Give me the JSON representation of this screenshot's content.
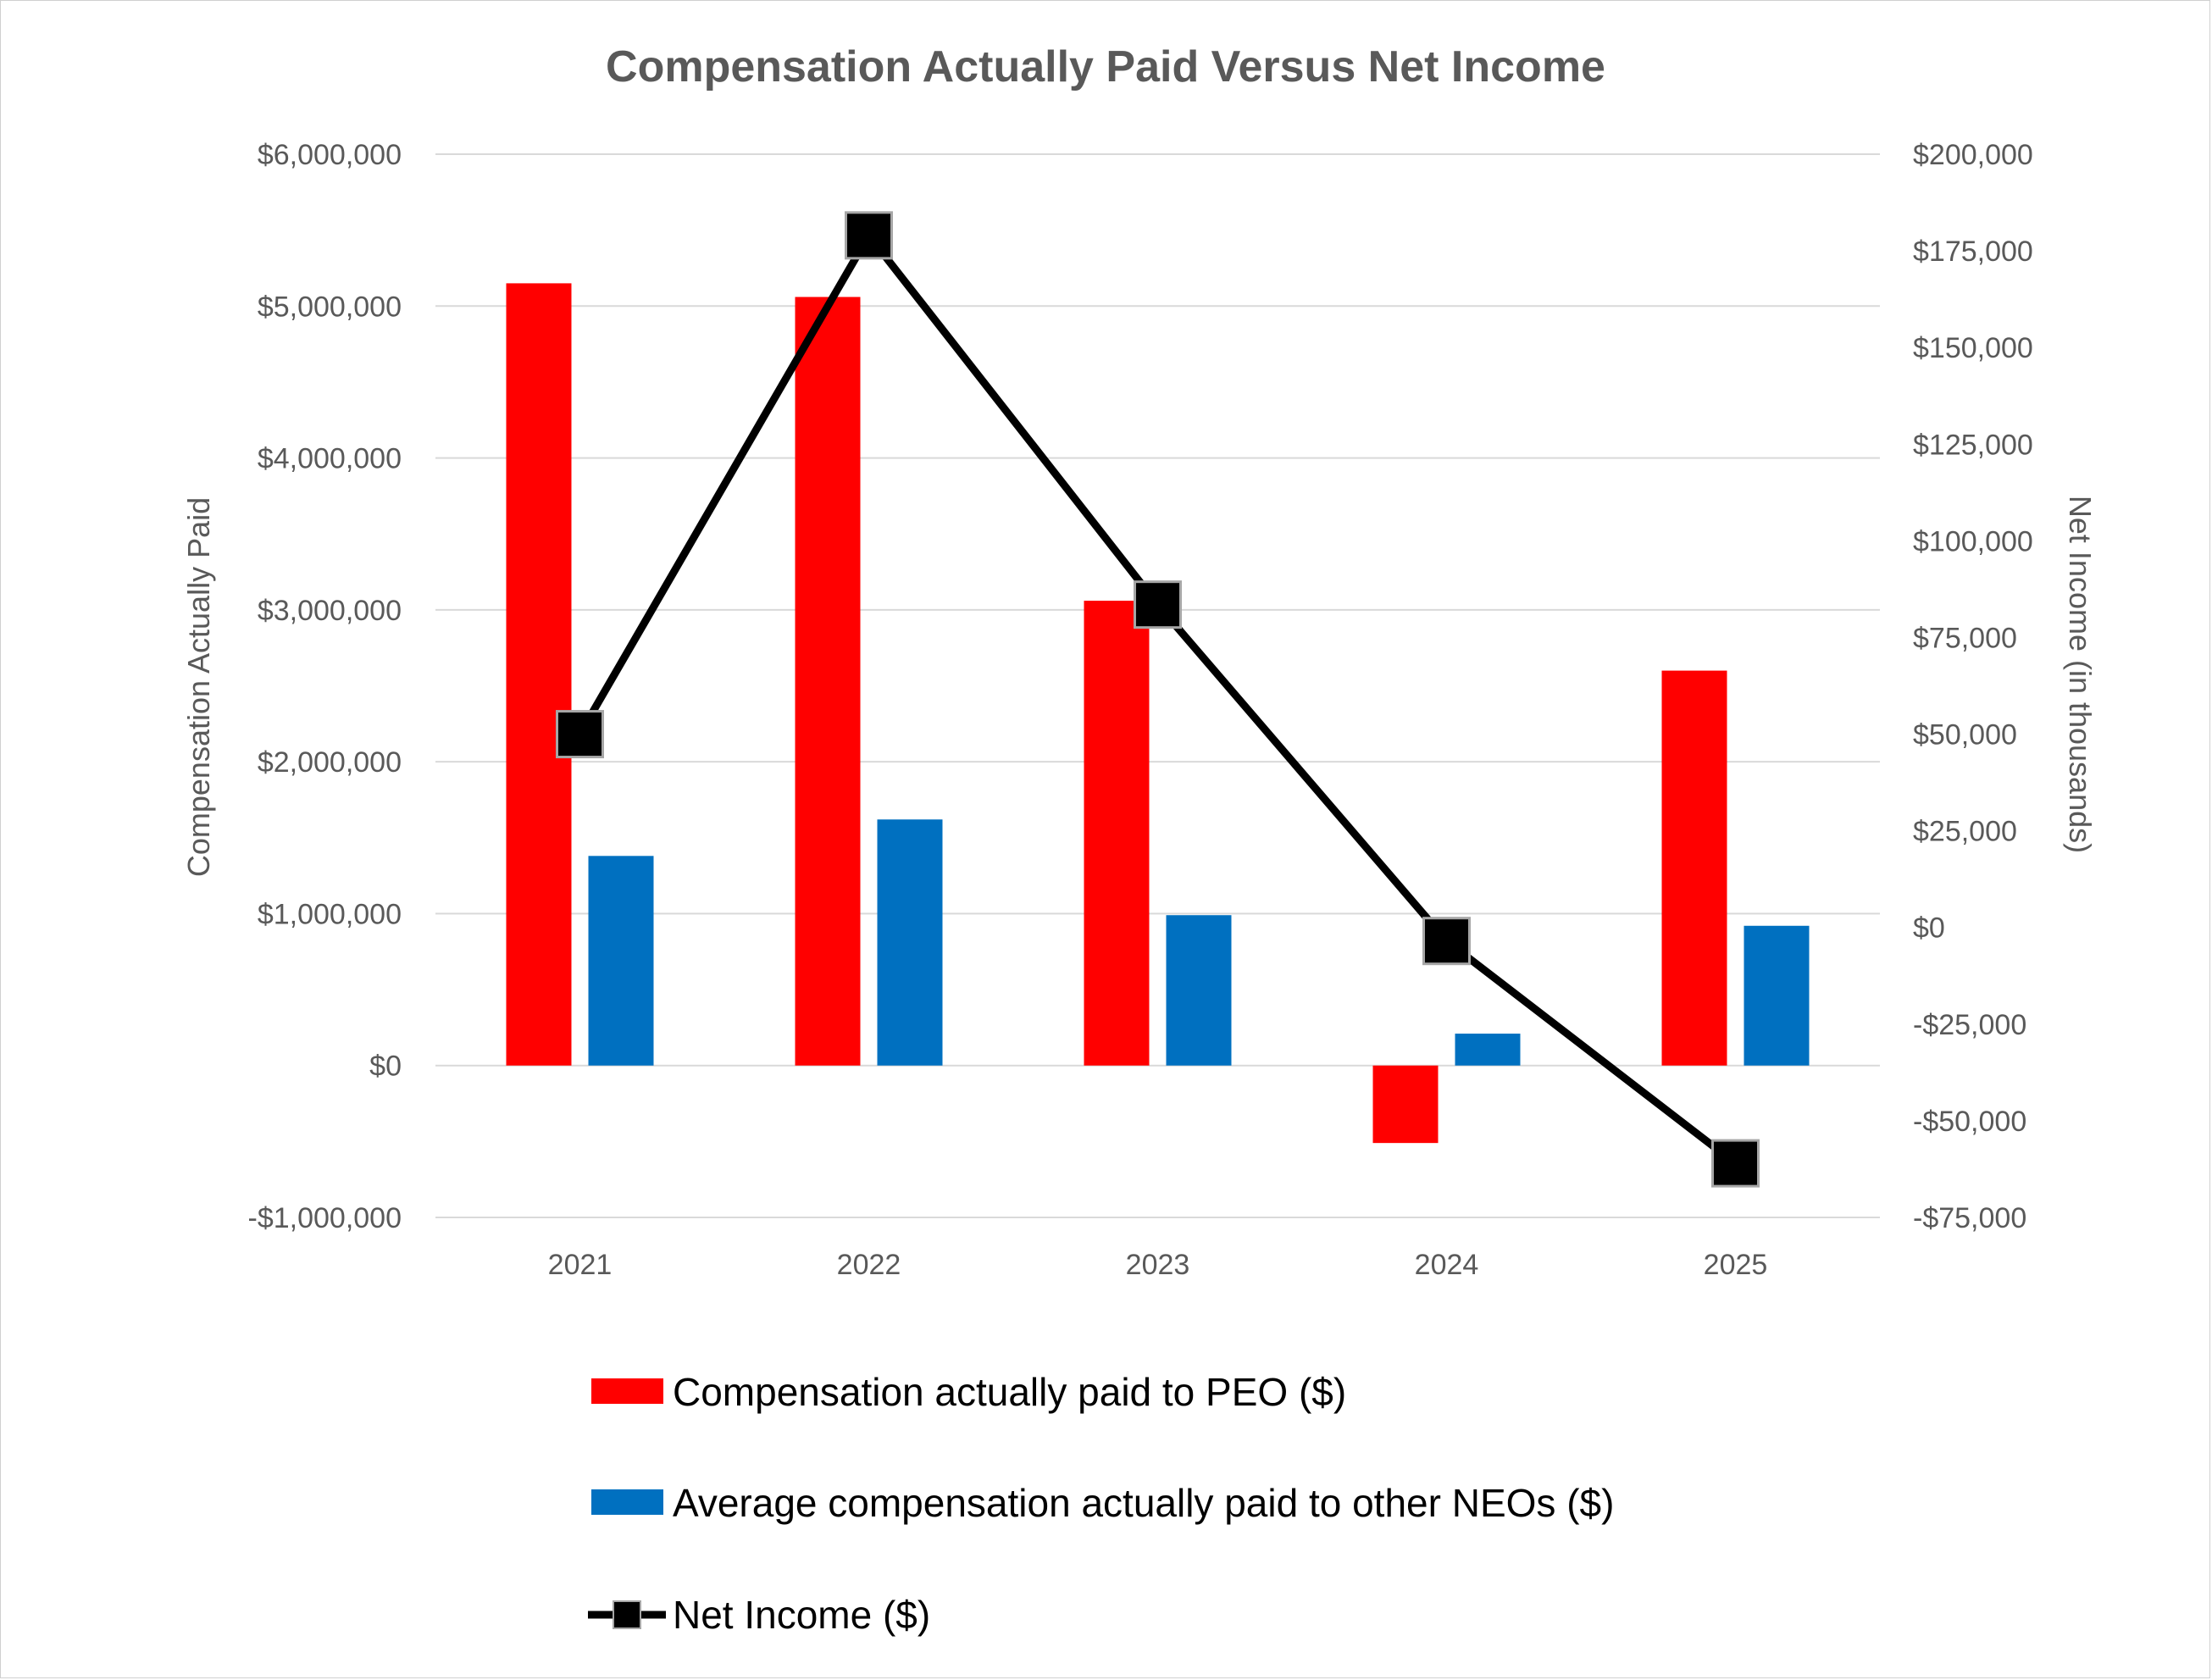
{
  "chart_data": {
    "type": "bar",
    "title": "Compensation Actually Paid Versus Net Income",
    "categories": [
      "2021",
      "2022",
      "2023",
      "2024",
      "2025"
    ],
    "ylabel": "Compensation Actually Paid",
    "y2label": "Net Income (in thousands)",
    "ylim": [
      -1000000,
      6000000
    ],
    "y2lim": [
      -75000,
      200000
    ],
    "yticks": [
      -1000000,
      0,
      1000000,
      2000000,
      3000000,
      4000000,
      5000000,
      6000000
    ],
    "yticklabels": [
      "-$1,000,000",
      "$0",
      "$1,000,000",
      "$2,000,000",
      "$3,000,000",
      "$4,000,000",
      "$5,000,000",
      "$6,000,000"
    ],
    "y2ticks": [
      -75000,
      -50000,
      -25000,
      0,
      25000,
      50000,
      75000,
      100000,
      125000,
      150000,
      175000,
      200000
    ],
    "y2ticklabels": [
      "-$75,000",
      "-$50,000",
      "-$25,000",
      "$0",
      "$25,000",
      "$50,000",
      "$75,000",
      "$100,000",
      "$125,000",
      "$150,000",
      "$175,000",
      "$200,000"
    ],
    "grid": true,
    "legend_position": "bottom",
    "series": [
      {
        "name": "Compensation actually paid to PEO ($)",
        "type": "bar",
        "axis": "left",
        "color": "#ff0000",
        "values": [
          5150000,
          5060000,
          3060000,
          -510000,
          2600000
        ]
      },
      {
        "name": "Average compensation actually paid to other NEOs ($)",
        "type": "bar",
        "axis": "left",
        "color": "#0070c0",
        "values": [
          1380000,
          1620000,
          990000,
          210000,
          920000
        ]
      },
      {
        "name": "Net Income ($)",
        "type": "line",
        "axis": "right",
        "color": "#000000",
        "marker": "square",
        "values": [
          50000,
          179000,
          83500,
          -3500,
          -61000
        ]
      }
    ]
  }
}
